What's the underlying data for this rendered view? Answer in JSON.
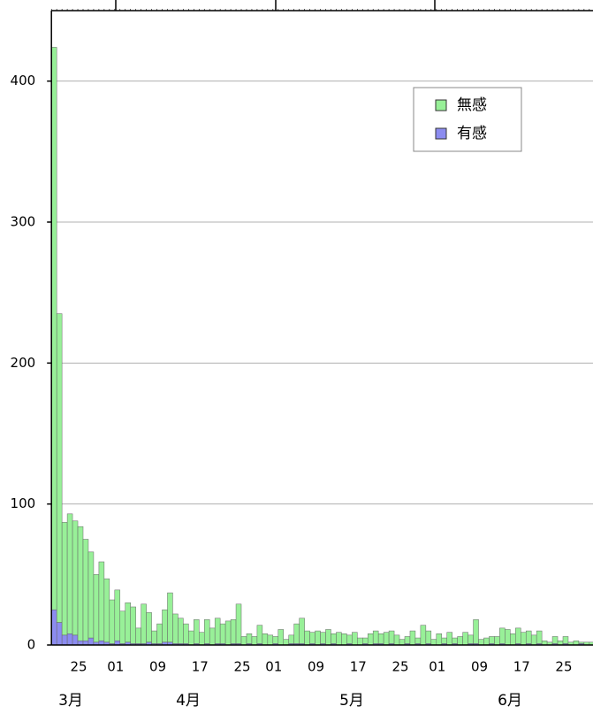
{
  "chart_data": {
    "type": "stacked_bar",
    "categories": [
      null,
      null,
      null,
      null,
      null,
      "25",
      null,
      null,
      null,
      null,
      null,
      null,
      "01",
      null,
      null,
      null,
      null,
      null,
      null,
      null,
      "09",
      null,
      null,
      null,
      null,
      null,
      null,
      null,
      "17",
      null,
      null,
      null,
      null,
      null,
      null,
      null,
      "25",
      null,
      null,
      null,
      null,
      null,
      "01",
      null,
      null,
      null,
      null,
      null,
      null,
      null,
      "09",
      null,
      null,
      null,
      null,
      null,
      null,
      null,
      "17",
      null,
      null,
      null,
      null,
      null,
      null,
      null,
      "25",
      null,
      null,
      null,
      null,
      null,
      null,
      "01",
      null,
      null,
      null,
      null,
      null,
      null,
      null,
      "09",
      null,
      null,
      null,
      null,
      null,
      null,
      null,
      "17",
      null,
      null,
      null,
      null,
      null,
      null,
      null,
      "25",
      null,
      null,
      null,
      null,
      null
    ],
    "x_group_labels": [
      "3月",
      "4月",
      "5月",
      "6月"
    ],
    "series": [
      {
        "name": "有感",
        "color": "#8c8cf0",
        "values": [
          25,
          16,
          7,
          8,
          7,
          3,
          3,
          5,
          2,
          3,
          2,
          1,
          3,
          1,
          2,
          1,
          1,
          1,
          2,
          1,
          1,
          2,
          2,
          1,
          1,
          1,
          0,
          1,
          0,
          1,
          0,
          1,
          1,
          0,
          1,
          1,
          0,
          1,
          0,
          1,
          0,
          0,
          1,
          0,
          0,
          1,
          1,
          1,
          0,
          1,
          0,
          1,
          0,
          1,
          0,
          0,
          1,
          0,
          0,
          1,
          0,
          1,
          1,
          0,
          1,
          0,
          0,
          1,
          0,
          1,
          0,
          1,
          0,
          0,
          1,
          0,
          1,
          0,
          0,
          1,
          1,
          0,
          0,
          1,
          0,
          1,
          0,
          0,
          1,
          0,
          1,
          0,
          1,
          0,
          0,
          1,
          0,
          1,
          0,
          0,
          1,
          0,
          0
        ]
      },
      {
        "name": "無感",
        "color": "#98f098",
        "values": [
          399,
          219,
          80,
          85,
          81,
          81,
          72,
          61,
          48,
          56,
          45,
          31,
          36,
          23,
          28,
          26,
          11,
          28,
          21,
          9,
          14,
          23,
          35,
          21,
          18,
          14,
          10,
          17,
          9,
          17,
          12,
          18,
          14,
          17,
          17,
          28,
          6,
          7,
          6,
          13,
          8,
          7,
          5,
          11,
          4,
          6,
          14,
          18,
          10,
          8,
          10,
          8,
          11,
          7,
          9,
          8,
          6,
          9,
          5,
          4,
          8,
          9,
          7,
          9,
          9,
          7,
          4,
          5,
          10,
          4,
          14,
          9,
          4,
          8,
          4,
          9,
          4,
          6,
          9,
          6,
          17,
          4,
          5,
          5,
          6,
          11,
          11,
          8,
          11,
          9,
          9,
          7,
          9,
          3,
          2,
          5,
          3,
          5,
          2,
          3,
          1,
          2,
          2
        ]
      }
    ],
    "ylim": [
      0,
      450
    ],
    "yticks": [
      0,
      100,
      200,
      300,
      400
    ],
    "grid": true
  }
}
